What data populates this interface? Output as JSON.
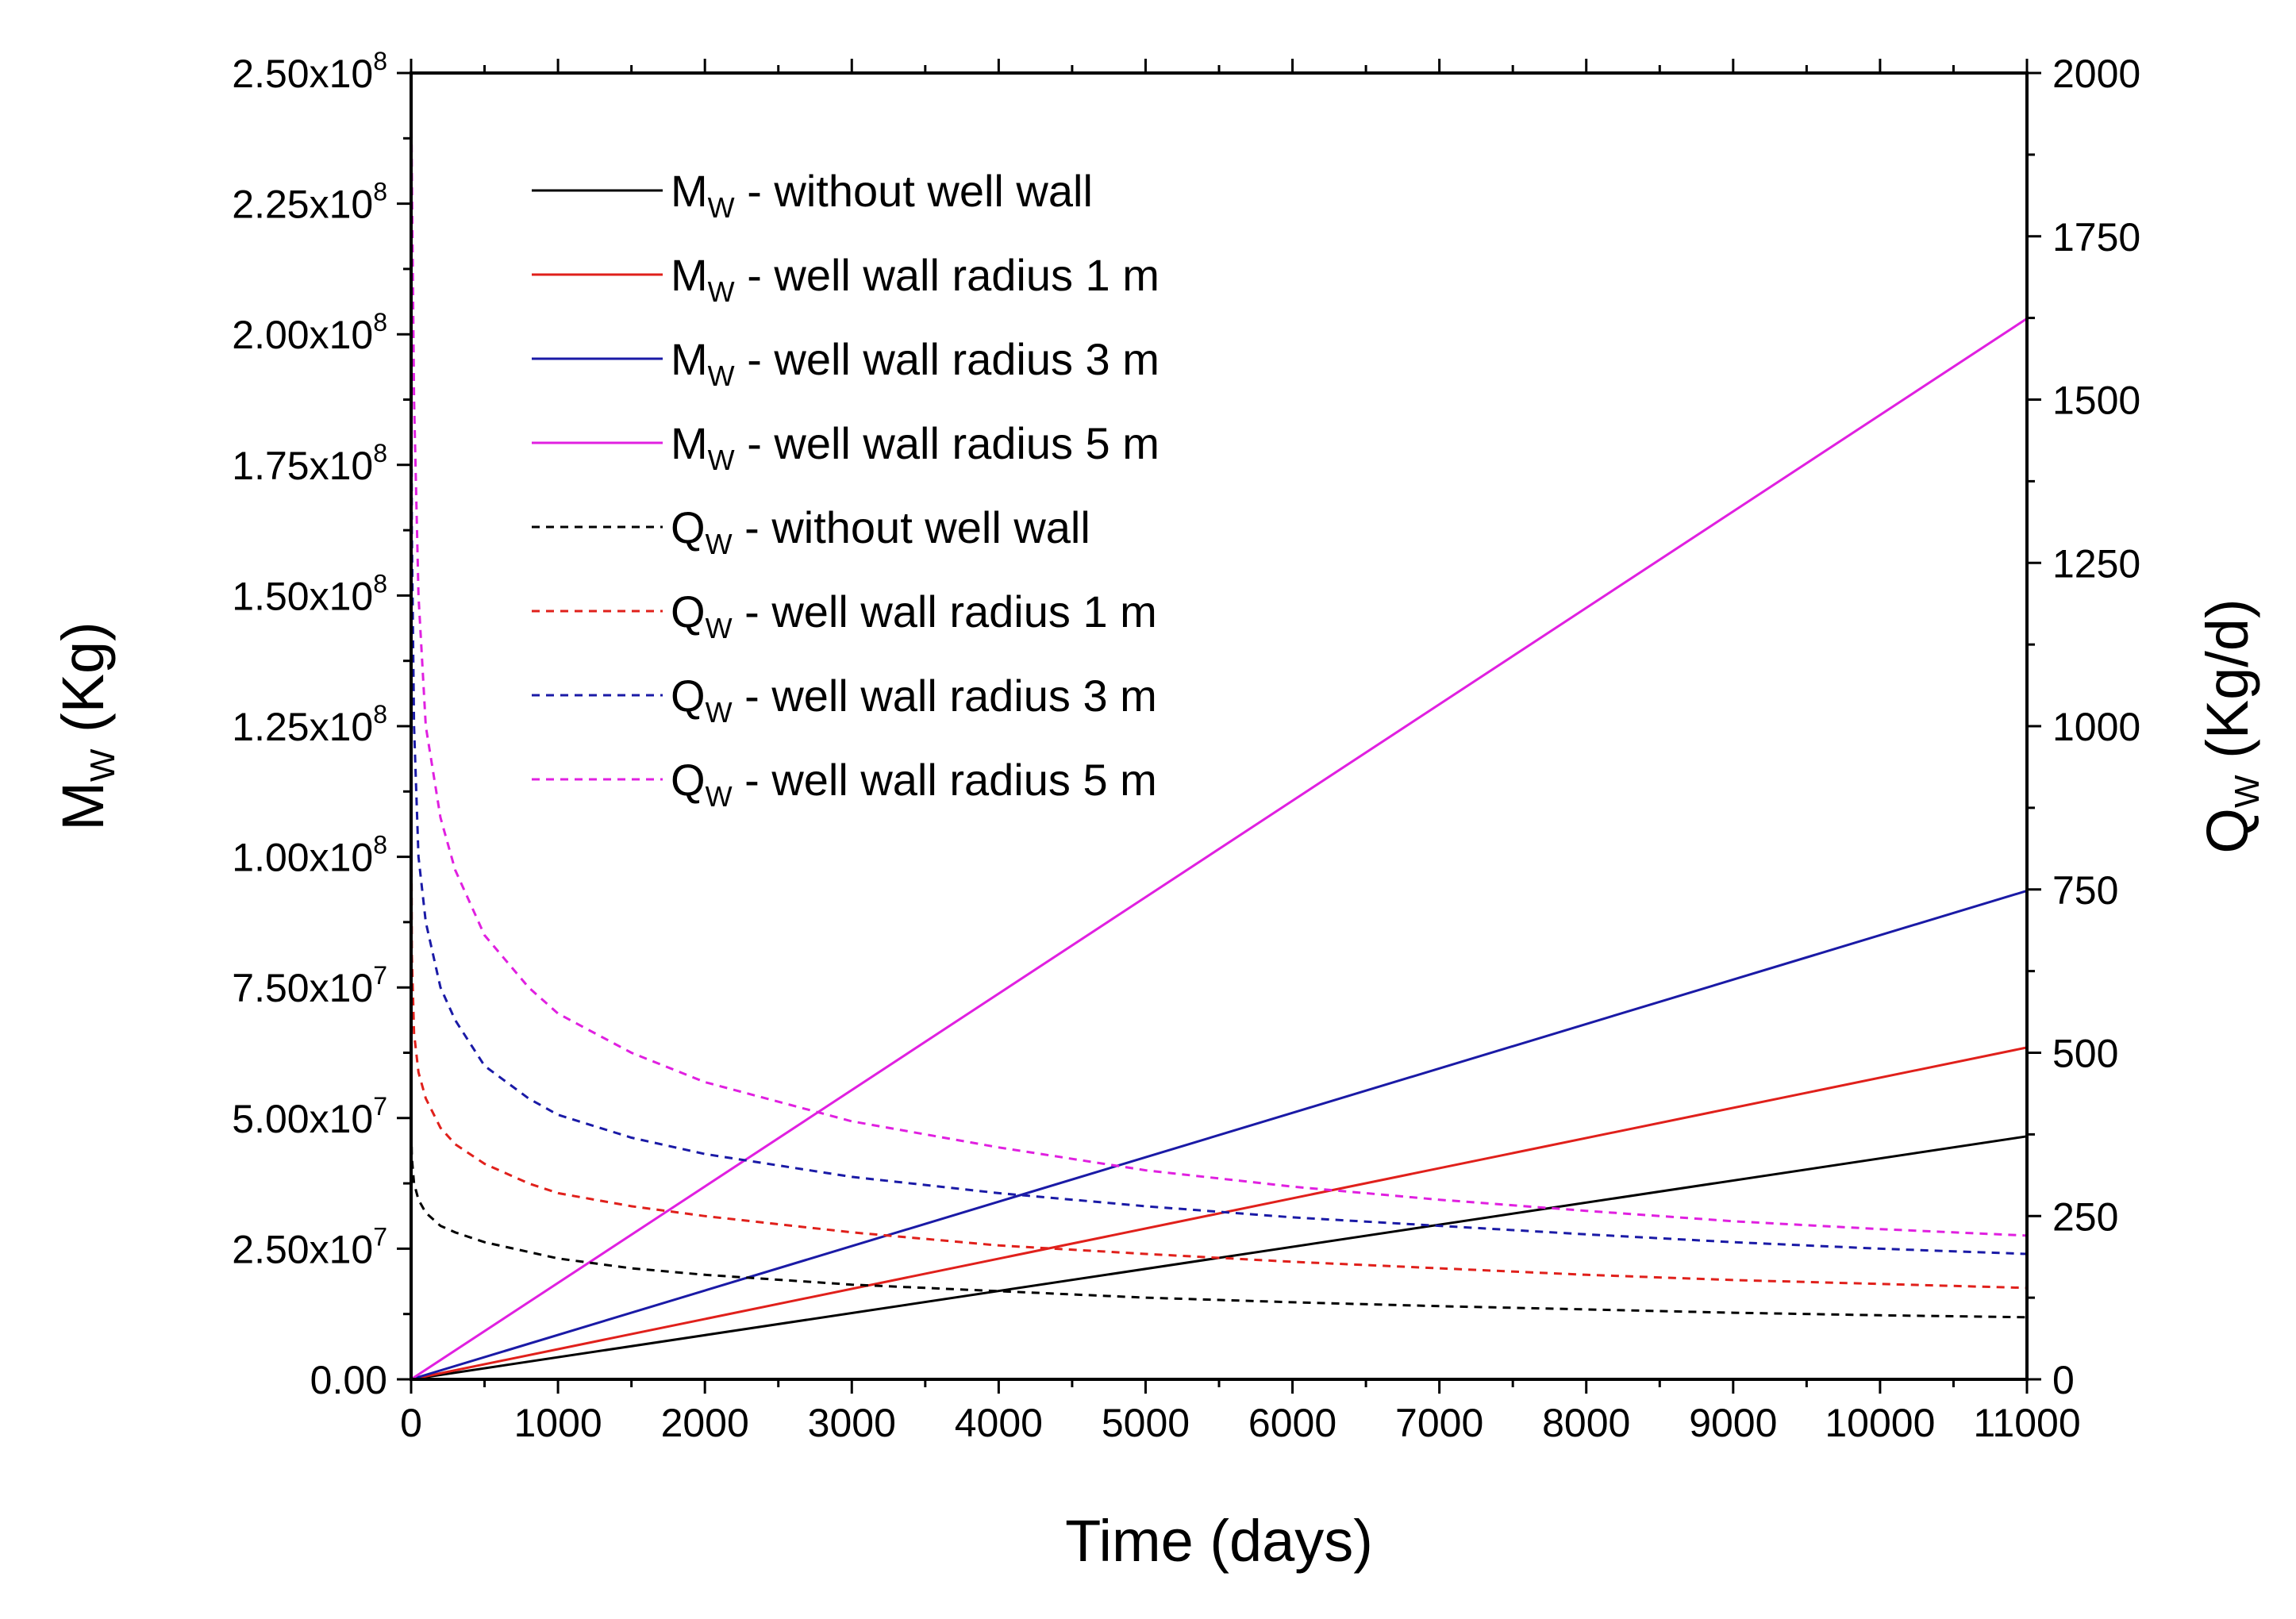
{
  "chart_data": {
    "type": "line",
    "title": "",
    "xlabel": "Time (days)",
    "ylabel_left": {
      "main": "M",
      "sub": "W",
      "unit": " (Kg)"
    },
    "ylabel_right": {
      "main": "Q",
      "sub": "W",
      "unit": " (Kg/d)"
    },
    "xlim": [
      0,
      11000
    ],
    "ylim_left": [
      0,
      250000000
    ],
    "ylim_right": [
      0,
      2000
    ],
    "x_ticks": [
      "0",
      "1000",
      "2000",
      "3000",
      "4000",
      "5000",
      "6000",
      "7000",
      "8000",
      "9000",
      "10000",
      "11000"
    ],
    "x_tick_values": [
      0,
      1000,
      2000,
      3000,
      4000,
      5000,
      6000,
      7000,
      8000,
      9000,
      10000,
      11000
    ],
    "y_left_ticks": [
      {
        "value": 0,
        "mantissa": "0.00",
        "exponent": ""
      },
      {
        "value": 25000000,
        "mantissa": "2.50x10",
        "exponent": "7"
      },
      {
        "value": 50000000,
        "mantissa": "5.00x10",
        "exponent": "7"
      },
      {
        "value": 75000000,
        "mantissa": "7.50x10",
        "exponent": "7"
      },
      {
        "value": 100000000,
        "mantissa": "1.00x10",
        "exponent": "8"
      },
      {
        "value": 125000000,
        "mantissa": "1.25x10",
        "exponent": "8"
      },
      {
        "value": 150000000,
        "mantissa": "1.50x10",
        "exponent": "8"
      },
      {
        "value": 175000000,
        "mantissa": "1.75x10",
        "exponent": "8"
      },
      {
        "value": 200000000,
        "mantissa": "2.00x10",
        "exponent": "8"
      },
      {
        "value": 225000000,
        "mantissa": "2.25x10",
        "exponent": "8"
      },
      {
        "value": 250000000,
        "mantissa": "2.50x10",
        "exponent": "8"
      }
    ],
    "y_right_ticks": [
      "0",
      "250",
      "500",
      "750",
      "1000",
      "1250",
      "1500",
      "1750",
      "2000"
    ],
    "y_right_tick_values": [
      0,
      250,
      500,
      750,
      1000,
      1250,
      1500,
      1750,
      2000
    ],
    "legend_position": "upper-left",
    "series": [
      {
        "name": "M_W - without well wall",
        "label_main": "M",
        "label_sub": "W",
        "label_rest": " - without well wall",
        "axis": "left",
        "style": "solid",
        "color": "#000000",
        "x": [
          0,
          11000
        ],
        "y": [
          0,
          46500000
        ]
      },
      {
        "name": "M_W - well wall radius 1 m",
        "label_main": "M",
        "label_sub": "W",
        "label_rest": " - well wall radius 1 m",
        "axis": "left",
        "style": "solid",
        "color": "#e0201b",
        "x": [
          0,
          11000
        ],
        "y": [
          0,
          63500000
        ]
      },
      {
        "name": "M_W - well wall radius 3 m",
        "label_main": "M",
        "label_sub": "W",
        "label_rest": " - well wall radius 3 m",
        "axis": "left",
        "style": "solid",
        "color": "#1a1aa6",
        "x": [
          0,
          11000
        ],
        "y": [
          0,
          93500000
        ]
      },
      {
        "name": "M_W - well wall radius 5 m",
        "label_main": "M",
        "label_sub": "W",
        "label_rest": " - well wall radius 5 m",
        "axis": "left",
        "style": "solid",
        "color": "#e020e0",
        "x": [
          0,
          11000
        ],
        "y": [
          0,
          203000000
        ]
      },
      {
        "name": "Q_W - without well wall",
        "label_main": "Q",
        "label_sub": "W",
        "label_rest": " - without well wall",
        "axis": "right",
        "style": "dashed",
        "color": "#000000",
        "x": [
          0,
          5,
          20,
          50,
          100,
          200,
          300,
          500,
          800,
          1000,
          1500,
          2000,
          3000,
          4000,
          5000,
          6000,
          7000,
          8000,
          9000,
          10000,
          11000
        ],
        "y": [
          400,
          340,
          300,
          275,
          255,
          235,
          225,
          210,
          195,
          185,
          170,
          160,
          145,
          135,
          125,
          118,
          112,
          107,
          102,
          98,
          95
        ]
      },
      {
        "name": "Q_W - well wall radius 1 m",
        "label_main": "Q",
        "label_sub": "W",
        "label_rest": " - well wall radius 1 m",
        "axis": "right",
        "style": "dashed",
        "color": "#e0201b",
        "x": [
          0,
          5,
          20,
          50,
          100,
          200,
          300,
          500,
          800,
          1000,
          1500,
          2000,
          3000,
          4000,
          5000,
          6000,
          7000,
          8000,
          9000,
          10000,
          11000
        ],
        "y": [
          1000,
          650,
          530,
          470,
          430,
          385,
          360,
          330,
          300,
          285,
          265,
          250,
          225,
          205,
          192,
          180,
          170,
          160,
          152,
          146,
          140
        ]
      },
      {
        "name": "Q_W - well wall radius 3 m",
        "label_main": "Q",
        "label_sub": "W",
        "label_rest": " - well wall radius 3 m",
        "axis": "right",
        "style": "dashed",
        "color": "#1a1aa6",
        "x": [
          0,
          5,
          20,
          50,
          100,
          200,
          300,
          500,
          800,
          1000,
          1500,
          2000,
          3000,
          4000,
          5000,
          6000,
          7000,
          8000,
          9000,
          10000,
          11000
        ],
        "y": [
          1700,
          1300,
          1000,
          800,
          700,
          600,
          550,
          480,
          430,
          405,
          370,
          345,
          310,
          285,
          265,
          248,
          235,
          222,
          210,
          200,
          192
        ]
      },
      {
        "name": "Q_W - well wall radius 5 m",
        "label_main": "Q",
        "label_sub": "W",
        "label_rest": " - well wall radius 5 m",
        "axis": "right",
        "style": "dashed",
        "color": "#e020e0",
        "x": [
          0,
          5,
          20,
          50,
          100,
          200,
          300,
          500,
          800,
          1000,
          1500,
          2000,
          3000,
          4000,
          5000,
          6000,
          7000,
          8000,
          9000,
          10000,
          11000
        ],
        "y": [
          2000,
          1850,
          1500,
          1200,
          1000,
          860,
          780,
          680,
          600,
          560,
          500,
          455,
          395,
          355,
          320,
          295,
          275,
          258,
          242,
          230,
          220
        ]
      }
    ]
  }
}
